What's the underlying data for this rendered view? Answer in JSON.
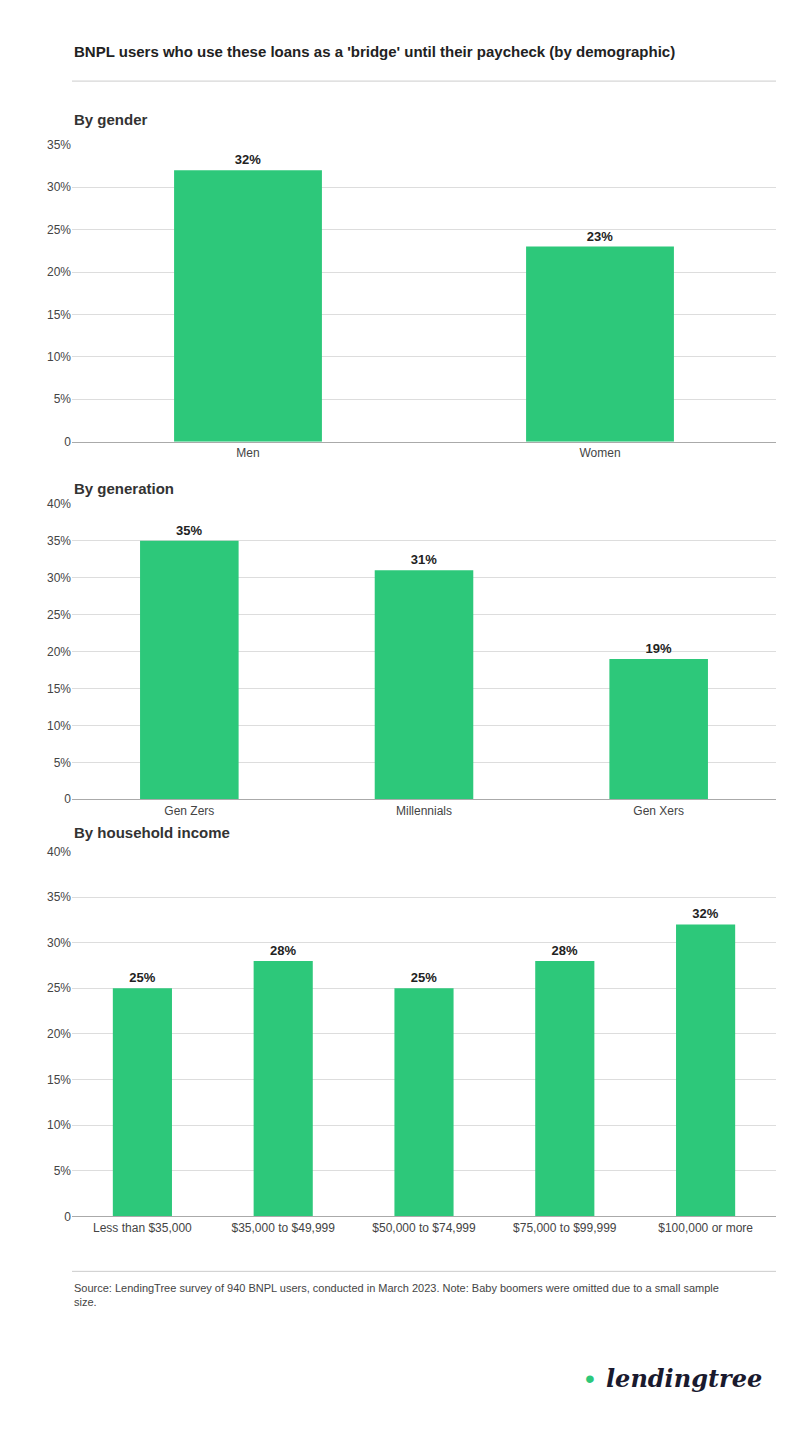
{
  "title": "BNPL users who use these loans as a 'bridge' until their paycheck (by demographic)",
  "annotations": [
    "Source: LendingTree survey of 940 BNPL users, conducted in March 2023. Note: Baby boomers were omitted due to a small sample\nsize.",
    "•",
    "lendingtree"
  ],
  "chart_data": [
    {
      "type": "bar",
      "title": "By gender",
      "categories": [
        "Men",
        "Women"
      ],
      "values": [
        32,
        23
      ],
      "value_labels": [
        "32%",
        "23%"
      ],
      "color": "#2DC87A",
      "ylim": [
        0,
        35
      ],
      "yticks": [
        0,
        {
          "value": 5,
          "label": "5%"
        },
        {
          "value": 10,
          "label": "10%"
        },
        {
          "value": 15,
          "label": "15%"
        },
        {
          "value": 20,
          "label": "20%"
        },
        {
          "value": 25,
          "label": "25%"
        },
        {
          "value": 30,
          "label": "30%"
        },
        {
          "value": 35,
          "label": "35%"
        }
      ],
      "grid": true,
      "data_labels": true
    },
    {
      "type": "bar",
      "title": "By generation",
      "categories": [
        "Gen Zers",
        "Millennials",
        "Gen Xers"
      ],
      "values": [
        35,
        31,
        19
      ],
      "value_labels": [
        "35%",
        "31%",
        "19%"
      ],
      "color": "#2DC87A",
      "ylim": [
        0,
        40
      ],
      "yticks": [
        0,
        {
          "value": 5,
          "label": "5%"
        },
        {
          "value": 10,
          "label": "10%"
        },
        {
          "value": 15,
          "label": "15%"
        },
        {
          "value": 20,
          "label": "20%"
        },
        {
          "value": 25,
          "label": "25%"
        },
        {
          "value": 30,
          "label": "30%"
        },
        {
          "value": 35,
          "label": "35%"
        },
        {
          "value": 40,
          "label": "40%"
        }
      ],
      "grid": true,
      "data_labels": true
    },
    {
      "type": "bar",
      "title": "By household income",
      "categories": [
        "Less than $35,000",
        "$35,000 to $49,999",
        "$50,000 to $74,999",
        "$75,000 to $99,999",
        "$100,000 or more"
      ],
      "values": [
        25,
        28,
        25,
        28,
        32
      ],
      "value_labels": [
        "25%",
        "28%",
        "25%",
        "28%",
        "32%"
      ],
      "color": "#2DC87A",
      "ylim": [
        0,
        40
      ],
      "yticks": [
        0,
        {
          "value": 5,
          "label": "5%"
        },
        {
          "value": 10,
          "label": "10%"
        },
        {
          "value": 15,
          "label": "15%"
        },
        {
          "value": 20,
          "label": "20%"
        },
        {
          "value": 25,
          "label": "25%"
        },
        {
          "value": 30,
          "label": "30%"
        },
        {
          "value": 35,
          "label": "35%"
        },
        {
          "value": 40,
          "label": "40%"
        }
      ],
      "grid": true,
      "data_labels": true
    }
  ]
}
